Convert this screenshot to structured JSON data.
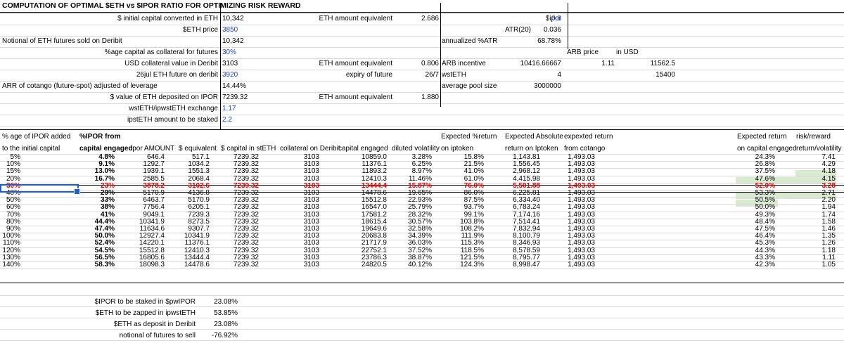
{
  "title": "COMPUTATION OF OPTIMAL $ETH vs $IPOR RATIO FOR OPTIMIZING RISK REWARD",
  "params": [
    {
      "label": "$ initial capital converted in ETH",
      "value": "10,342"
    },
    {
      "label": "$ETH price",
      "value": "3850"
    },
    {
      "label": "Notional of ETH futures sold on Deribit",
      "value": "10,342"
    },
    {
      "label": "%age capital as collateral for futures",
      "value": "30%"
    },
    {
      "label": "USD collateral value in Deribit",
      "value": "3103"
    },
    {
      "label": "26jul ETH future on deribit",
      "value": "3920"
    },
    {
      "label": "ARR of cotango (future-spot) adjusted of leverage",
      "value": "14.44%"
    },
    {
      "label": "$ value of ETH deposited on IPOR",
      "value": "7239.32"
    },
    {
      "label": "wstETH/ipwstETH exchange",
      "value": "1.17"
    },
    {
      "label": "ipstETH amount to be staked",
      "value": "2.2"
    }
  ],
  "mid": [
    {
      "label": "ETH amount equivalent",
      "value": "2.686"
    },
    {
      "label": "ETH amount equivalent",
      "value": "0.806"
    },
    {
      "label": "expiry of future",
      "value": "26/7"
    },
    {
      "label": "ETH amount equivalent",
      "value": "1.880"
    }
  ],
  "right": {
    "ipor_label": "$ipor",
    "ipor_value": "0.8",
    "atr_label": "ATR(20)",
    "atr_value": "0.036",
    "annual_label": "annualized %ATR",
    "annual_value": "68.78%",
    "arb_price_label": "ARB price",
    "in_usd": "in USD",
    "arb_incentive_label": "ARB incentive",
    "arb_incentive": "10416.66667",
    "arb_price": "1.11",
    "arb_usd": "11562.5",
    "wsteth_label": "wstETH",
    "wsteth": "4",
    "wsteth_usd": "15400",
    "pool_label": "average pool size",
    "pool": "3000000"
  },
  "table": {
    "h1": [
      "% age of IPOR added",
      "%IPOR from",
      "",
      "",
      "",
      "",
      "",
      "",
      "Expected %return",
      "Expected Absolute",
      "expexted return",
      "Expected return",
      "risk/reward"
    ],
    "h2": [
      "to the initial capital",
      "capital engaged",
      "ipor AMOUNT",
      "$ equivalent",
      "$ capital in stETH",
      "collateral on Deribit",
      "capital engaged",
      "diluted volatility",
      "on iptoken",
      "return on Iptoken",
      "from cotango",
      "on capital engaged",
      "return/volatility"
    ],
    "rows": [
      [
        "5%",
        "4.8%",
        "646.4",
        "517.1",
        "7239.32",
        "3103",
        "10859.0",
        "3.28%",
        "15.8%",
        "1,143.81",
        "1,493.03",
        "24.3%",
        "7.41"
      ],
      [
        "10%",
        "9.1%",
        "1292.7",
        "1034.2",
        "7239.32",
        "3103",
        "11376.1",
        "6.25%",
        "21.5%",
        "1,556.45",
        "1,493.03",
        "26.8%",
        "4.29"
      ],
      [
        "15%",
        "13.0%",
        "1939.1",
        "1551.3",
        "7239.32",
        "3103",
        "11893.2",
        "8.97%",
        "41.0%",
        "2,968.12",
        "1,493.03",
        "37.5%",
        "4.18"
      ],
      [
        "20%",
        "16.7%",
        "2585.5",
        "2068.4",
        "7239.32",
        "3103",
        "12410.3",
        "11.46%",
        "61.0%",
        "4,415.98",
        "1,493.03",
        "47.6%",
        "4.15"
      ],
      [
        "30%",
        "23%",
        "3878.2",
        "3102.6",
        "7239.32",
        "3103",
        "13444.4",
        "15.87%",
        "76.0%",
        "5,501.88",
        "1,493.03",
        "52.0%",
        "3.28"
      ],
      [
        "40%",
        "29%",
        "5170.9",
        "4136.8",
        "7239.32",
        "3103",
        "14478.6",
        "19.65%",
        "86.0%",
        "6,225.81",
        "1,493.03",
        "53.3%",
        "2.71"
      ],
      [
        "50%",
        "33%",
        "6463.7",
        "5170.9",
        "7239.32",
        "3103",
        "15512.8",
        "22.93%",
        "87.5%",
        "6,334.40",
        "1,493.03",
        "50.5%",
        "2.20"
      ],
      [
        "60%",
        "38%",
        "7756.4",
        "6205.1",
        "7239.32",
        "3103",
        "16547.0",
        "25.79%",
        "93.7%",
        "6,783.24",
        "1,493.03",
        "50.0%",
        "1.94"
      ],
      [
        "70%",
        "41%",
        "9049.1",
        "7239.3",
        "7239.32",
        "3103",
        "17581.2",
        "28.32%",
        "99.1%",
        "7,174.16",
        "1,493.03",
        "49.3%",
        "1.74"
      ],
      [
        "80%",
        "44.4%",
        "10341.9",
        "8273.5",
        "7239.32",
        "3103",
        "18615.4",
        "30.57%",
        "103.8%",
        "7,514.41",
        "1,493.03",
        "48.4%",
        "1.58"
      ],
      [
        "90%",
        "47.4%",
        "11634.6",
        "9307.7",
        "7239.32",
        "3103",
        "19649.6",
        "32.58%",
        "108.2%",
        "7,832.94",
        "1,493.03",
        "47.5%",
        "1.46"
      ],
      [
        "100%",
        "50.0%",
        "12927.4",
        "10341.9",
        "7239.32",
        "3103",
        "20683.8",
        "34.39%",
        "111.9%",
        "8,100.79",
        "1,493.03",
        "46.4%",
        "1.35"
      ],
      [
        "110%",
        "52.4%",
        "14220.1",
        "11376.1",
        "7239.32",
        "3103",
        "21717.9",
        "36.03%",
        "115.3%",
        "8,346.93",
        "1,493.03",
        "45.3%",
        "1.26"
      ],
      [
        "120%",
        "54.5%",
        "15512.8",
        "12410.3",
        "7239.32",
        "3103",
        "22752.1",
        "37.52%",
        "118.5%",
        "8,578.59",
        "1,493.03",
        "44.3%",
        "1.18"
      ],
      [
        "130%",
        "56.5%",
        "16805.6",
        "13444.4",
        "7239.32",
        "3103",
        "23786.3",
        "38.87%",
        "121.5%",
        "8,795.77",
        "1,493.03",
        "43.3%",
        "1.11"
      ],
      [
        "140%",
        "58.3%",
        "18098.3",
        "14478.6",
        "7239.32",
        "3103",
        "24820.5",
        "40.12%",
        "124.3%",
        "8,998.47",
        "1,493.03",
        "42.3%",
        "1.05"
      ]
    ]
  },
  "summary": [
    {
      "label": "$IPOR to be staked in $pwIPOR",
      "value": "23.08%"
    },
    {
      "label": "$ETH to be zapped in ipwstETH",
      "value": "53.85%"
    },
    {
      "label": "$ETH as deposit in Deribit",
      "value": "23.08%"
    },
    {
      "label": "notional of futures to sell",
      "value": "-76.92%"
    }
  ],
  "colors": {
    "input_blue": "#1f3fc4",
    "highlight_red": "#e00000",
    "green_fill": "#d8ebcf",
    "selection": "#1a5fd0"
  }
}
